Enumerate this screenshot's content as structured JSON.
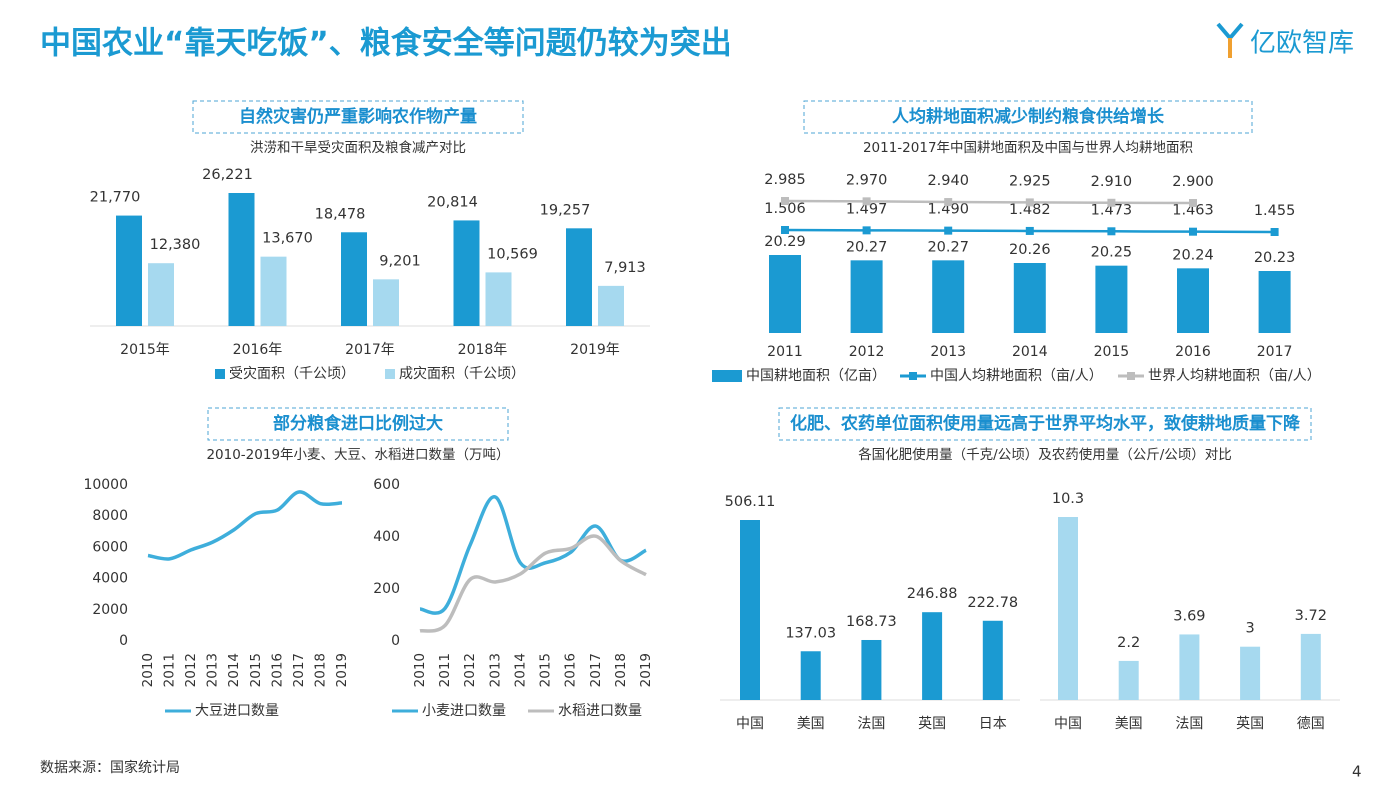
{
  "header": {
    "title": "中国农业“靠天吃饭”、粮食安全等问题仍较为突出",
    "logo": "亿欧智库"
  },
  "footer": {
    "source": "数据来源：国家统计局",
    "page": "4"
  },
  "chart_data": [
    {
      "type": "bar",
      "title": "自然灾害仍严重影响农作物产量",
      "subtitle": "洪涝和干旱受灾面积及粮食减产对比",
      "categories": [
        "2015年",
        "2016年",
        "2017年",
        "2018年",
        "2019年"
      ],
      "series": [
        {
          "name": "受灾面积（千公顷）",
          "color": "#1b9ad2",
          "values": [
            21770,
            26221,
            18478,
            20814,
            19257
          ],
          "value_labels": [
            "21,770",
            "26,221",
            "18,478",
            "20,814",
            "19,257"
          ]
        },
        {
          "name": "成灾面积（千公顷）",
          "color": "#a6d9ef",
          "values": [
            12380,
            13670,
            9201,
            10569,
            7913
          ],
          "value_labels": [
            "12,380",
            "13,670",
            "9,201",
            "10,569",
            "7,913"
          ]
        }
      ]
    },
    {
      "type": "combo",
      "title": "人均耕地面积减少制约粮食供给增长",
      "subtitle": "2011-2017年中国耕地面积及中国与世界人均耕地面积",
      "categories": [
        "2011",
        "2012",
        "2013",
        "2014",
        "2015",
        "2016",
        "2017"
      ],
      "series": [
        {
          "name": "中国耕地面积（亿亩）",
          "kind": "bar",
          "color": "#1b9ad2",
          "values": [
            20.29,
            20.27,
            20.27,
            20.26,
            20.25,
            20.24,
            20.23
          ]
        },
        {
          "name": "中国人均耕地面积（亩/人）",
          "kind": "line",
          "color": "#1b9ad2",
          "values": [
            1.506,
            1.497,
            1.49,
            1.482,
            1.473,
            1.463,
            1.455
          ],
          "value_labels": [
            "1.506",
            "1.497",
            "1.490",
            "1.482",
            "1.473",
            "1.463",
            "1.455"
          ]
        },
        {
          "name": "世界人均耕地面积（亩/人）",
          "kind": "line",
          "color": "#bdbdbd",
          "values": [
            2.985,
            2.97,
            2.94,
            2.925,
            2.91,
            2.9,
            null
          ],
          "value_labels": [
            "2.985",
            "2.970",
            "2.940",
            "2.925",
            "2.910",
            "2.900",
            null
          ]
        }
      ]
    },
    {
      "type": "line",
      "title": "部分粮食进口比例过大",
      "subtitle": "2010-2019年小麦、大豆、水稻进口数量（万吨）",
      "categories": [
        "2010",
        "2011",
        "2012",
        "2013",
        "2014",
        "2015",
        "2016",
        "2017",
        "2018",
        "2019"
      ],
      "ylim": [
        0,
        10000
      ],
      "yticks": [
        0,
        2000,
        4000,
        6000,
        8000,
        10000
      ],
      "series": [
        {
          "name": "大豆进口数量",
          "color": "#3eaedb",
          "values": [
            5480,
            5264,
            5838,
            6338,
            7140,
            8169,
            8391,
            9553,
            8803,
            8851
          ]
        }
      ]
    },
    {
      "type": "line",
      "categories": [
        "2010",
        "2011",
        "2012",
        "2013",
        "2014",
        "2015",
        "2016",
        "2017",
        "2018",
        "2019"
      ],
      "ylim": [
        0,
        600
      ],
      "yticks": [
        0,
        200,
        400,
        600
      ],
      "series": [
        {
          "name": "小麦进口数量",
          "color": "#3eaedb",
          "values": [
            123,
            126,
            370,
            554,
            300,
            301,
            341,
            442,
            310,
            349
          ]
        },
        {
          "name": "水稻进口数量",
          "color": "#bdbdbd",
          "values": [
            39,
            60,
            237,
            227,
            258,
            338,
            356,
            403,
            308,
            255
          ]
        }
      ]
    },
    {
      "type": "bar",
      "title": "化肥、农药单位面积使用量远高于世界平均水平，致使耕地质量下降",
      "subtitle": "各国化肥使用量（千克/公顷）及农药使用量（公斤/公顷）对比",
      "categories": [
        "中国",
        "美国",
        "法国",
        "英国",
        "日本"
      ],
      "values": [
        506.11,
        137.03,
        168.73,
        246.88,
        222.78
      ],
      "color": "#1b9ad2"
    },
    {
      "type": "bar",
      "categories": [
        "中国",
        "美国",
        "法国",
        "英国",
        "德国"
      ],
      "values": [
        10.3,
        2.2,
        3.69,
        3,
        3.72
      ],
      "color": "#a6d9ef"
    }
  ]
}
